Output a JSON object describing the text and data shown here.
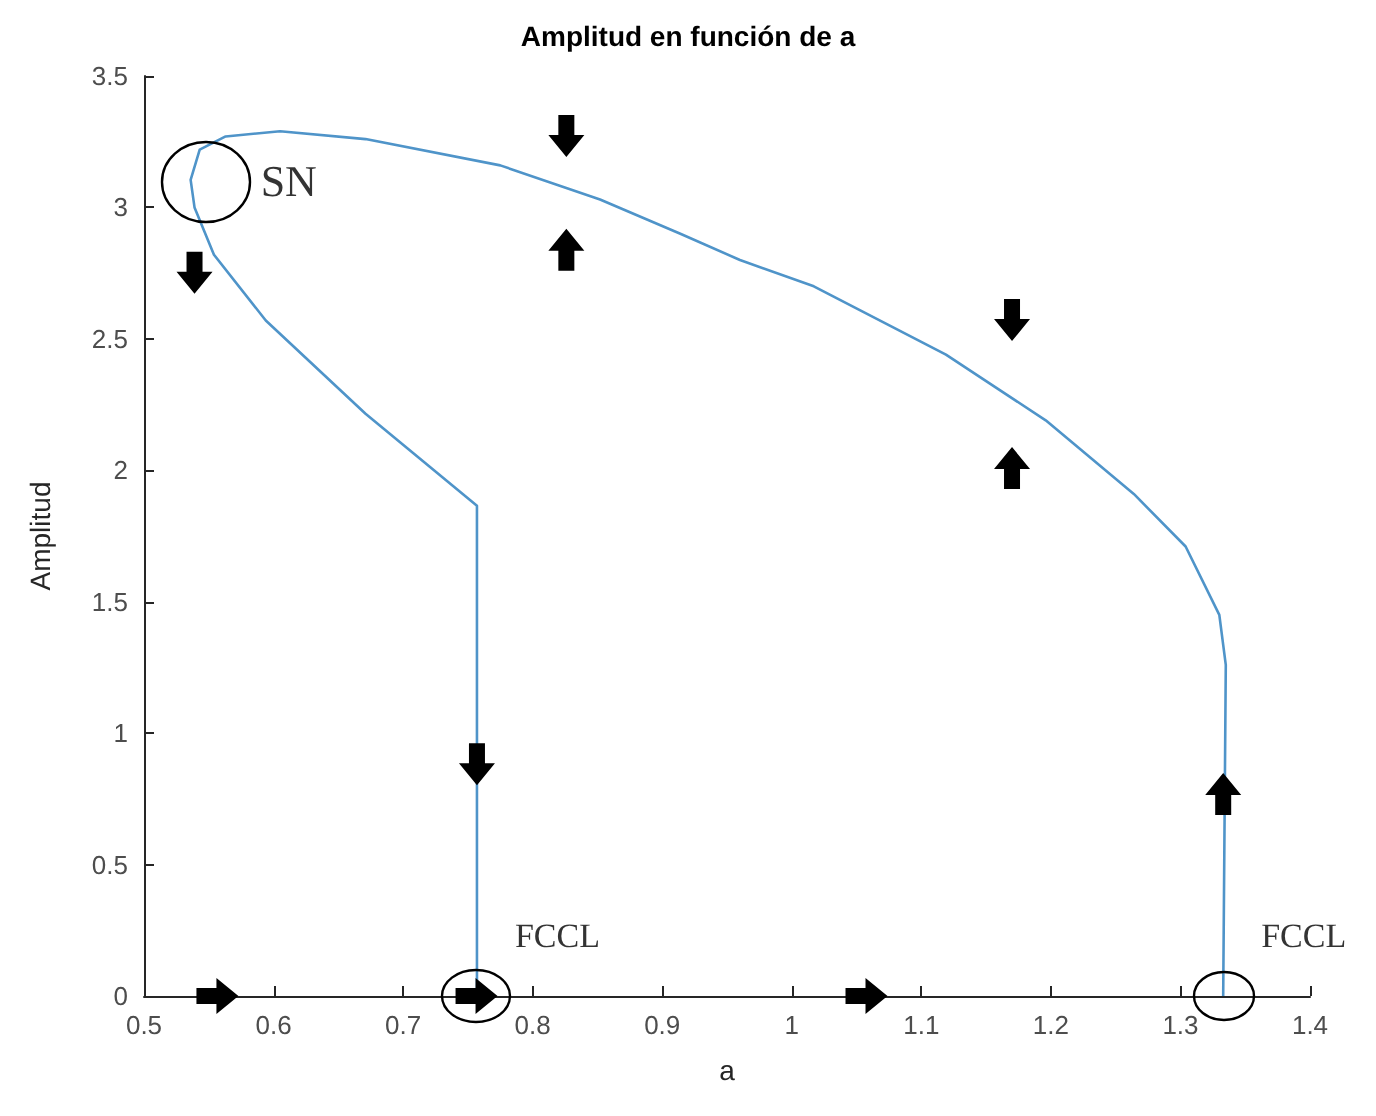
{
  "chart_data": {
    "type": "line",
    "title": "Amplitud en función de a",
    "xlabel": "a",
    "ylabel": "Amplitud",
    "x": [
      0.757,
      0.757,
      0.671,
      0.594,
      0.554,
      0.539,
      0.536,
      0.543,
      0.563,
      0.605,
      0.671,
      0.775,
      0.852,
      0.914,
      0.96,
      1.017,
      1.119,
      1.196,
      1.264,
      1.304,
      1.33,
      1.335,
      1.333
    ],
    "series": [
      {
        "color": "#4f94c9",
        "values": [
          0,
          1.865,
          2.215,
          2.57,
          2.82,
          3.0,
          3.105,
          3.22,
          3.27,
          3.29,
          3.26,
          3.16,
          3.03,
          2.9,
          2.8,
          2.7,
          2.44,
          2.19,
          1.91,
          1.71,
          1.45,
          1.26,
          0
        ]
      }
    ],
    "annotations": [
      {
        "text": "SN",
        "x": 0.536,
        "y": 3.1
      },
      {
        "text": "FCCL",
        "x": 0.757,
        "y": 0
      },
      {
        "text": "FCCL",
        "x": 1.333,
        "y": 0
      }
    ],
    "xlim": [
      0.5,
      1.4
    ],
    "xticks": [
      0.5,
      0.6,
      0.7,
      0.8,
      0.9,
      1,
      1.1,
      1.2,
      1.3,
      1.4
    ],
    "ylim": [
      0,
      3.5
    ],
    "yticks": [
      0,
      0.5,
      1,
      1.5,
      2,
      2.5,
      3,
      3.5
    ],
    "grid": false,
    "marker": "none",
    "line_style": "solid"
  }
}
